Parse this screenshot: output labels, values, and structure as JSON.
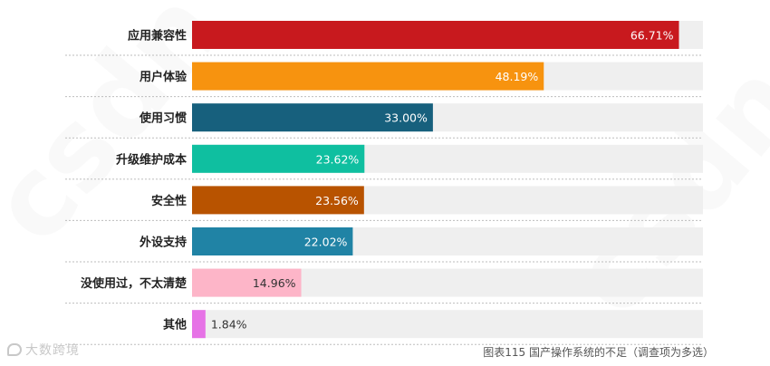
{
  "chart_data": {
    "type": "bar",
    "orientation": "horizontal",
    "categories": [
      "应用兼容性",
      "用户体验",
      "使用习惯",
      "升级维护成本",
      "安全性",
      "外设支持",
      "没使用过，不太清楚",
      "其他"
    ],
    "values": [
      66.71,
      48.19,
      33.0,
      23.62,
      23.56,
      22.02,
      14.96,
      1.84
    ],
    "value_labels": [
      "66.71%",
      "48.19%",
      "33.00%",
      "23.62%",
      "23.56%",
      "22.02%",
      "14.96%",
      "1.84%"
    ],
    "colors": [
      "#c8191e",
      "#f7930f",
      "#17607d",
      "#0fbfa0",
      "#b85300",
      "#2083a5",
      "#fdb5c8",
      "#e673e6"
    ],
    "label_colors": [
      "#ffffff",
      "#ffffff",
      "#ffffff",
      "#ffffff",
      "#ffffff",
      "#ffffff",
      "#333333",
      "#333333"
    ],
    "track_color": "#efefef",
    "xlim": [
      0,
      70
    ],
    "grid": false,
    "legend": "none"
  },
  "caption": "图表115 国产操作系统的不足（调查项为多选）",
  "logo_text": "大数跨境"
}
